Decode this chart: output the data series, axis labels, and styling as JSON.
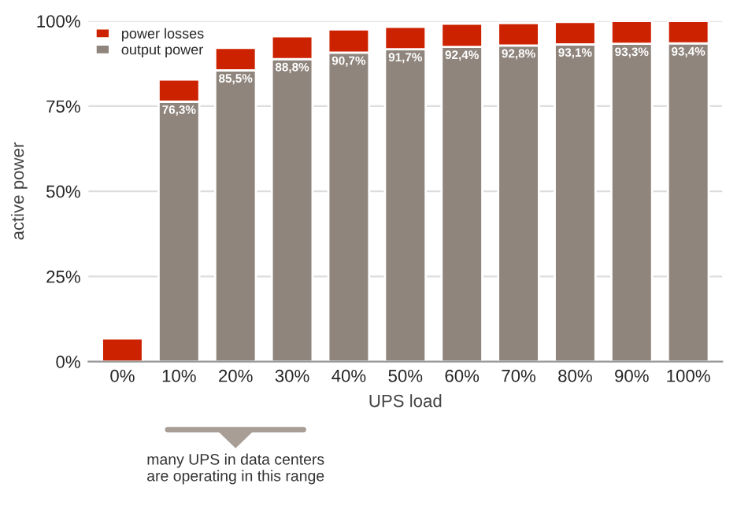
{
  "chart_data": {
    "type": "bar",
    "stacked": true,
    "xlabel": "UPS load",
    "ylabel": "active power",
    "categories": [
      "0%",
      "10%",
      "20%",
      "30%",
      "40%",
      "50%",
      "60%",
      "70%",
      "80%",
      "90%",
      "100%"
    ],
    "series": [
      {
        "name": "output power",
        "color": "#8f857d",
        "values": [
          0,
          76.3,
          85.5,
          88.8,
          90.7,
          91.7,
          92.4,
          92.8,
          93.1,
          93.3,
          93.4
        ],
        "value_labels": [
          null,
          "76,3%",
          "85,5%",
          "88,8%",
          "90,7%",
          "91,7%",
          "92,4%",
          "92,8%",
          "93,1%",
          "93,3%",
          "93,4%"
        ]
      },
      {
        "name": "power losses",
        "color": "#cc2200",
        "values": [
          6.8,
          6.5,
          6.6,
          6.7,
          6.8,
          6.6,
          6.8,
          6.6,
          6.6,
          6.7,
          6.6
        ]
      }
    ],
    "ylim": [
      0,
      100
    ],
    "yticks": [
      {
        "value": 0,
        "label": "0%"
      },
      {
        "value": 25,
        "label": "25%"
      },
      {
        "value": 50,
        "label": "50%"
      },
      {
        "value": 75,
        "label": "75%"
      },
      {
        "value": 100,
        "label": "100%"
      }
    ],
    "grid": "y",
    "legend": "top left",
    "annotations": [
      "many UPS in data centers\nare operating in this range"
    ]
  }
}
